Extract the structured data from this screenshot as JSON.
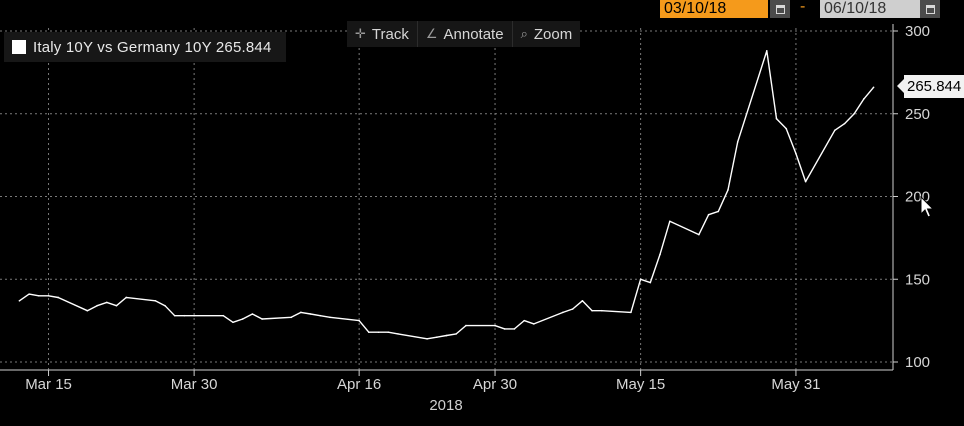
{
  "toolbar": {
    "track_label": "Track",
    "annotate_label": "Annotate",
    "zoom_label": "Zoom",
    "track_icon": "crosshair-icon",
    "annotate_icon": "pencil-icon",
    "zoom_icon": "magnifier-icon"
  },
  "date_range": {
    "start": "03/10/18",
    "separator": "-",
    "end": "06/10/18",
    "calendar_icon": "calendar-icon"
  },
  "legend": {
    "label": "Italy 10Y vs Germany 10Y 265.844",
    "swatch_color": "#ffffff"
  },
  "last_value_tag": "265.844",
  "colors": {
    "background": "#000000",
    "line": "#ffffff",
    "grid": "#7a7a7a",
    "start_date_bg": "#f59a1b",
    "end_date_bg": "#cfcfcf"
  },
  "chart_data": {
    "type": "line",
    "title": "",
    "xlabel": "2018",
    "ylabel": "",
    "ylim": [
      100,
      300
    ],
    "xlim": [
      "2018-03-10",
      "2018-06-10"
    ],
    "grid": true,
    "legend_position": "top-left",
    "y_ticks": [
      100,
      150,
      200,
      250,
      300
    ],
    "x_ticks": [
      {
        "date": "2018-03-15",
        "label": "Mar 15"
      },
      {
        "date": "2018-03-30",
        "label": "Mar 30"
      },
      {
        "date": "2018-04-16",
        "label": "Apr 16"
      },
      {
        "date": "2018-04-30",
        "label": "Apr 30"
      },
      {
        "date": "2018-05-15",
        "label": "May 15"
      },
      {
        "date": "2018-05-31",
        "label": "May 31"
      }
    ],
    "series": [
      {
        "name": "Italy 10Y vs Germany 10Y",
        "color": "#ffffff",
        "x": [
          "2018-03-12",
          "2018-03-13",
          "2018-03-14",
          "2018-03-15",
          "2018-03-16",
          "2018-03-19",
          "2018-03-20",
          "2018-03-21",
          "2018-03-22",
          "2018-03-23",
          "2018-03-26",
          "2018-03-27",
          "2018-03-28",
          "2018-03-29",
          "2018-03-30",
          "2018-04-02",
          "2018-04-03",
          "2018-04-04",
          "2018-04-05",
          "2018-04-06",
          "2018-04-09",
          "2018-04-10",
          "2018-04-11",
          "2018-04-12",
          "2018-04-13",
          "2018-04-16",
          "2018-04-17",
          "2018-04-18",
          "2018-04-19",
          "2018-04-20",
          "2018-04-23",
          "2018-04-24",
          "2018-04-25",
          "2018-04-26",
          "2018-04-27",
          "2018-04-30",
          "2018-05-01",
          "2018-05-02",
          "2018-05-03",
          "2018-05-04",
          "2018-05-07",
          "2018-05-08",
          "2018-05-09",
          "2018-05-10",
          "2018-05-11",
          "2018-05-14",
          "2018-05-15",
          "2018-05-16",
          "2018-05-17",
          "2018-05-18",
          "2018-05-21",
          "2018-05-22",
          "2018-05-23",
          "2018-05-24",
          "2018-05-25",
          "2018-05-28",
          "2018-05-29",
          "2018-05-30",
          "2018-05-31",
          "2018-06-01",
          "2018-06-04",
          "2018-06-05",
          "2018-06-06",
          "2018-06-07",
          "2018-06-08"
        ],
        "values": [
          137,
          141,
          140,
          140,
          139,
          131,
          134,
          136,
          134,
          139,
          137,
          134,
          128,
          128,
          128,
          128,
          124,
          126,
          129,
          126,
          127,
          130,
          129,
          128,
          127,
          125,
          118,
          118,
          118,
          117,
          114,
          115,
          116,
          117,
          122,
          122,
          120,
          120,
          125,
          123,
          130,
          132,
          137,
          131,
          131,
          130,
          150,
          148,
          165,
          185,
          177,
          189,
          191,
          204,
          233,
          288,
          247,
          241,
          226,
          209,
          240,
          244,
          250,
          259,
          266
        ]
      }
    ]
  }
}
